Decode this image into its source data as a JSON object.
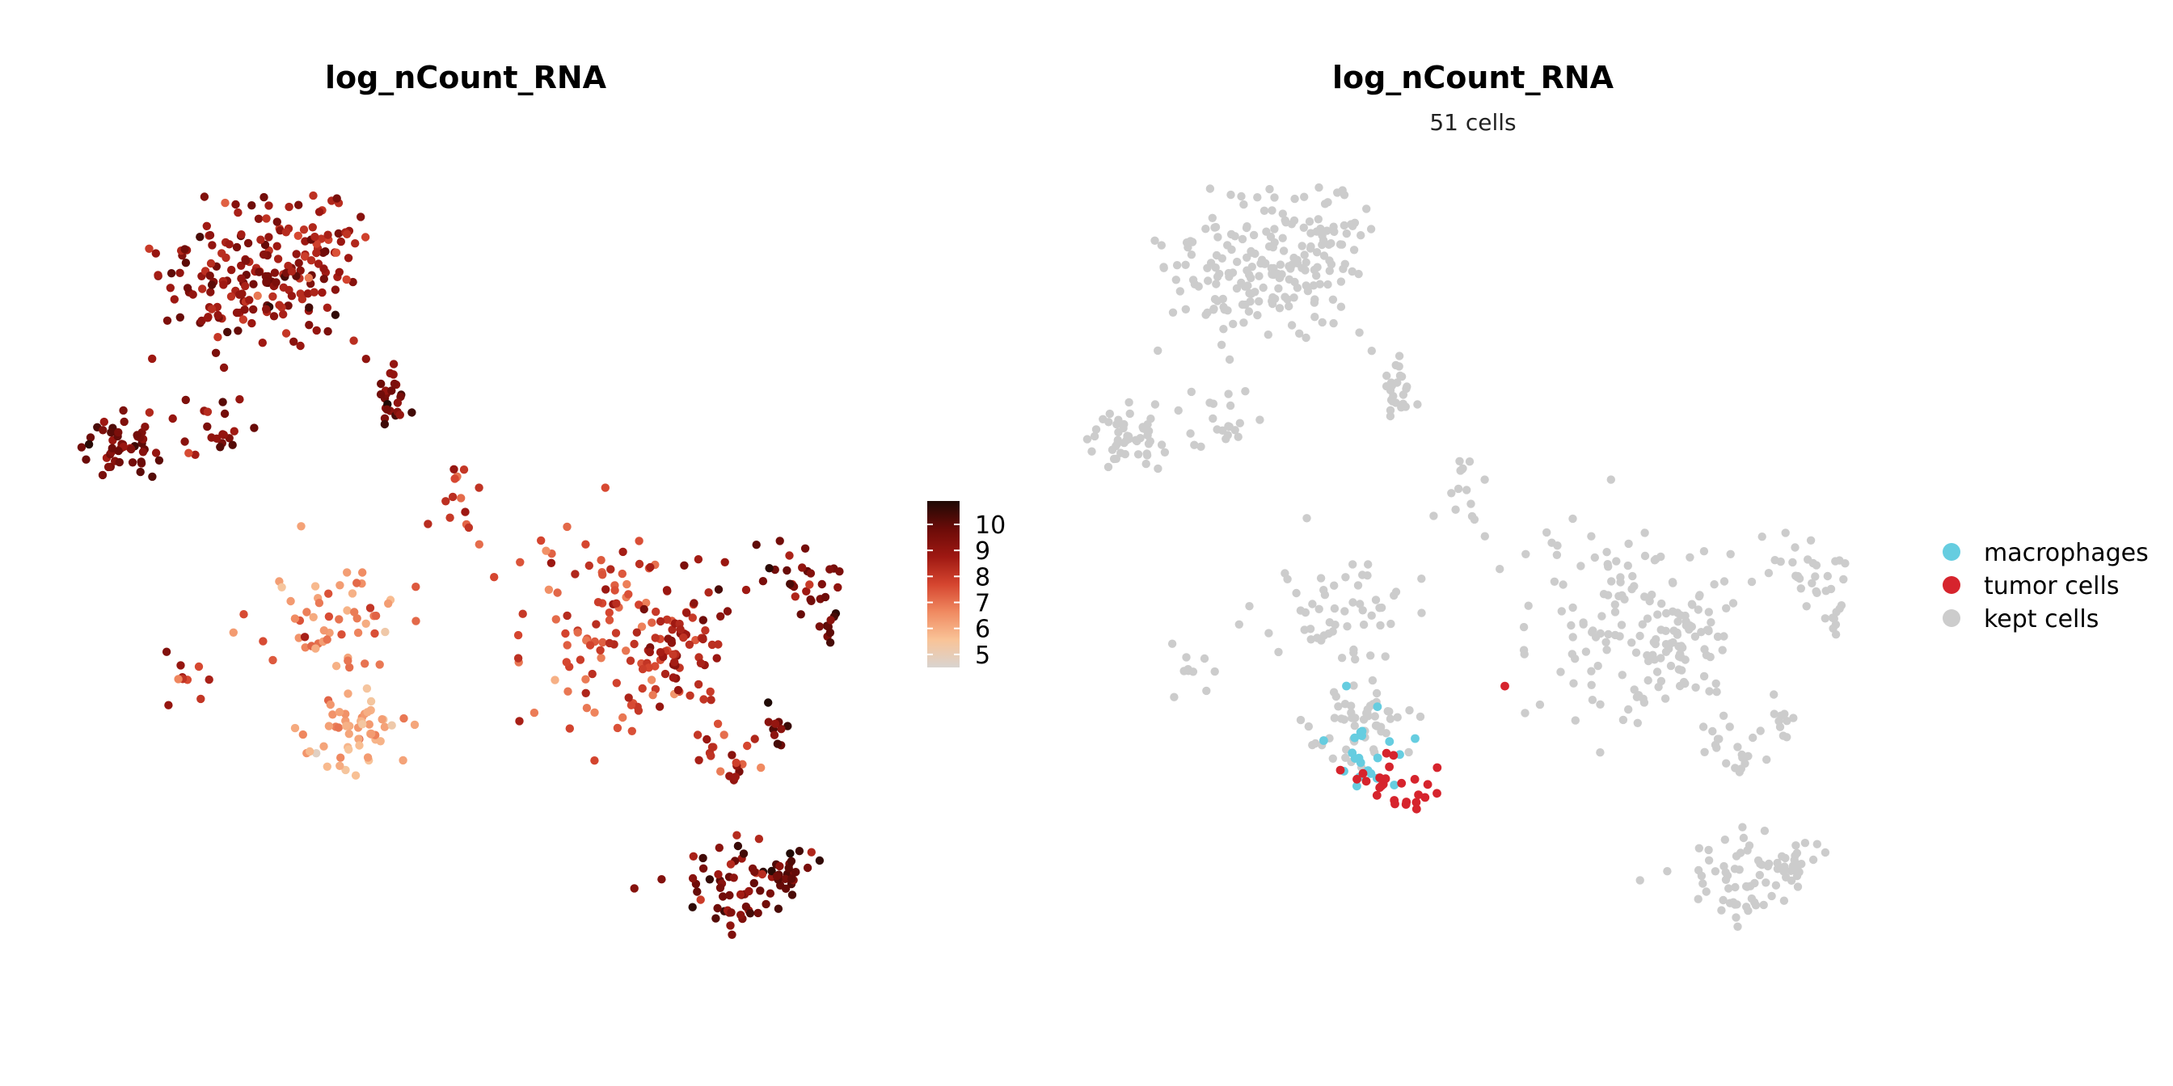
{
  "chart_data": [
    {
      "type": "scatter",
      "title": "log_nCount_RNA",
      "subtitle": "",
      "xlabel": "",
      "ylabel": "",
      "grid": false,
      "axes_visible": false,
      "color_scale": {
        "name": "",
        "ticks": [
          5,
          6,
          7,
          8,
          9,
          10
        ],
        "range": [
          4.5,
          10.9
        ],
        "colors": [
          "#d9d4d0",
          "#f9c397",
          "#f08a61",
          "#d5452f",
          "#9e1812",
          "#6b0b08",
          "#1f0a05"
        ]
      },
      "legend_position": "right"
    },
    {
      "type": "scatter",
      "title": "log_nCount_RNA",
      "subtitle": "51 cells",
      "xlabel": "",
      "ylabel": "",
      "grid": false,
      "axes_visible": false,
      "legend_position": "right",
      "categories": [
        {
          "name": "macrophages",
          "color": "#66cde0"
        },
        {
          "name": "tumor cells",
          "color": "#d6242d"
        },
        {
          "name": "kept cells",
          "color": "#cccccc"
        }
      ]
    }
  ]
}
